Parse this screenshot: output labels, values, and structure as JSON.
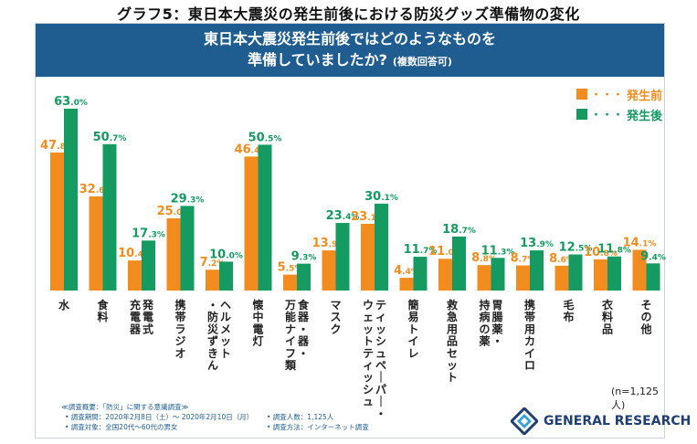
{
  "graph_title": "グラフ5：東日本大震災の発生前後における防災グッズ準備物の変化",
  "banner": {
    "line1": "東日本大震災発生前後ではどのようなものを",
    "line2": "準備していましたか?",
    "line2_sub": "(複数回答可)"
  },
  "legend": {
    "dots": "・・・",
    "before": "発生前",
    "after": "発生後"
  },
  "colors": {
    "before": "#f28c1e",
    "after": "#159a61",
    "banner": "#1f5c8f"
  },
  "chart_data": {
    "type": "bar",
    "title": "東日本大震災発生前後ではどのようなものを準備していましたか?(複数回答可)",
    "xlabel": "",
    "ylabel": "",
    "ylim": [
      0,
      70
    ],
    "grid": false,
    "legend_position": "top-right",
    "categories": [
      "水",
      "食料",
      "充電器 発電式",
      "携帯ラジオ",
      "ヘルメット・防災ずきん",
      "懐中電灯",
      "食器・器・万能ナイフ類",
      "マスク",
      "ティッシュペーパー・ウェットティッシュ",
      "簡易トイレ",
      "救急用品セット",
      "持病の薬 胃腸薬・",
      "携帯用カイロ",
      "毛布",
      "衣料品",
      "その他"
    ],
    "category_lines": [
      [
        "水"
      ],
      [
        "食料"
      ],
      [
        "発電式",
        "充電器"
      ],
      [
        "携帯ラジオ"
      ],
      [
        "ヘルメット",
        "・防災ずきん"
      ],
      [
        "懐中電灯"
      ],
      [
        "食器・器・",
        "万能ナイフ類"
      ],
      [
        "マスク"
      ],
      [
        "ティッシュペーパー・",
        "ウェットティッシュ"
      ],
      [
        "簡易トイレ"
      ],
      [
        "救急用品セット"
      ],
      [
        "胃腸薬・",
        "持病の薬"
      ],
      [
        "携帯用カイロ"
      ],
      [
        "毛布"
      ],
      [
        "衣料品"
      ],
      [
        "その他"
      ]
    ],
    "series": [
      {
        "name": "発生前",
        "values": [
          47.8,
          32.6,
          10.4,
          25.0,
          7.2,
          46.4,
          5.5,
          13.9,
          23.1,
          4.4,
          11.0,
          8.8,
          8.7,
          8.6,
          10.8,
          14.1
        ]
      },
      {
        "name": "発生後",
        "values": [
          63.0,
          50.7,
          17.3,
          29.3,
          10.0,
          50.5,
          9.3,
          23.4,
          30.1,
          11.7,
          18.7,
          11.3,
          13.9,
          12.5,
          11.8,
          9.4
        ]
      }
    ],
    "value_suffix": "%"
  },
  "n_note": "(n=1,125人)",
  "notes": {
    "survey_name": "≪調査概要：「防災」に関する意識調査≫",
    "period": "• 調査期間：2020年2月8日（土）～ 2020年2月10日（月）",
    "respondents": "• 調査人数：1,125人",
    "target": "• 調査対象：全国20代～60代の男女",
    "method": "• 調査方法：インターネット調査"
  },
  "brand": {
    "name": "GENERAL RESEARCH"
  }
}
